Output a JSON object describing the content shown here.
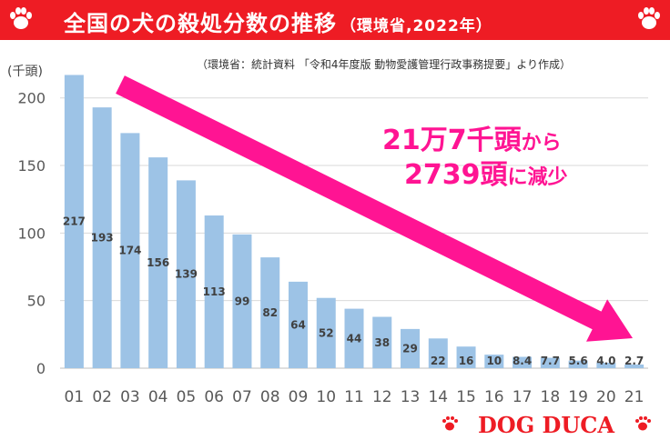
{
  "banner": {
    "title": "全国の犬の殺処分数の推移",
    "subtitle": "（環境省,2022年）",
    "paw_color": "#ee1c24",
    "bg_color": "#ee1c24"
  },
  "source": "（環境省：統計資料 「令和4年度版 動物愛護管理行政事務提要」より作成）",
  "note": {
    "line1_a": "21万7千頭",
    "line1_b": "から",
    "line2_a": "2739頭",
    "line2_b": "に減少",
    "color": "#ff1493"
  },
  "logo": {
    "text": "DOG DUCA",
    "color": "#ee1c24"
  },
  "chart_data": {
    "type": "bar",
    "ylabel": "(千頭)",
    "ylim": [
      0,
      220
    ],
    "yticks": [
      0,
      50,
      100,
      150,
      200
    ],
    "grid": true,
    "bar_color": "#9dc3e6",
    "categories": [
      "01",
      "02",
      "03",
      "04",
      "05",
      "06",
      "07",
      "08",
      "09",
      "10",
      "11",
      "12",
      "13",
      "14",
      "15",
      "16",
      "17",
      "18",
      "19",
      "20",
      "21"
    ],
    "values": [
      217,
      193,
      174,
      156,
      139,
      113,
      99,
      82,
      64,
      52,
      44,
      38,
      29,
      22,
      16,
      10,
      8.4,
      7.7,
      5.6,
      4.0,
      2.7
    ],
    "data_labels": [
      "217",
      "193",
      "174",
      "156",
      "139",
      "113",
      "99",
      "82",
      "64",
      "52",
      "44",
      "38",
      "29",
      "22",
      "16",
      "10",
      "8.4",
      "7.7",
      "5.6",
      "4.0",
      "2.7"
    ],
    "trend_arrow": {
      "color": "#ff1493"
    }
  }
}
